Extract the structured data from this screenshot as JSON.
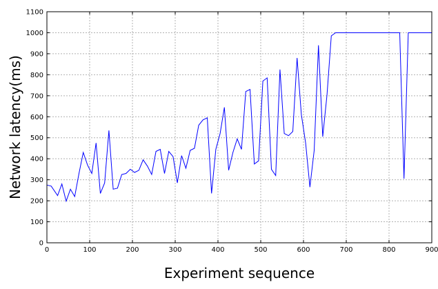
{
  "chart_data": {
    "type": "line",
    "title": "",
    "xlabel": "Experiment sequence",
    "ylabel": "Network latency(ms)",
    "xlim": [
      0,
      900
    ],
    "ylim": [
      0,
      1100
    ],
    "xticks": [
      0,
      100,
      200,
      300,
      400,
      500,
      600,
      700,
      800,
      900
    ],
    "yticks": [
      0,
      100,
      200,
      300,
      400,
      500,
      600,
      700,
      800,
      900,
      1000,
      1100
    ],
    "grid": true,
    "legend": "none",
    "colors": {
      "series": "#0000ff",
      "grid": "#b0b0b0",
      "axis": "#000000"
    },
    "series": [
      {
        "x": [
          0,
          10,
          25,
          35,
          45,
          55,
          65,
          75,
          85,
          95,
          105,
          115,
          125,
          135,
          145,
          155,
          165,
          175,
          185,
          195,
          205,
          215,
          225,
          235,
          245,
          255,
          265,
          275,
          285,
          295,
          305,
          315,
          325,
          335,
          345,
          355,
          365,
          375,
          385,
          395,
          405,
          415,
          425,
          435,
          445,
          455,
          465,
          475,
          485,
          495,
          505,
          515,
          525,
          535,
          545,
          555,
          565,
          575,
          585,
          595,
          605,
          615,
          625,
          635,
          645,
          655,
          665,
          675,
          685,
          700,
          720,
          740,
          760,
          780,
          800,
          825,
          835,
          845,
          855,
          865,
          880,
          900
        ],
        "y": [
          275,
          270,
          225,
          280,
          198,
          255,
          220,
          330,
          430,
          370,
          330,
          475,
          235,
          285,
          535,
          255,
          260,
          325,
          330,
          350,
          335,
          345,
          395,
          365,
          325,
          435,
          445,
          330,
          435,
          410,
          285,
          415,
          355,
          440,
          450,
          560,
          585,
          595,
          235,
          445,
          520,
          645,
          345,
          430,
          495,
          445,
          720,
          730,
          375,
          390,
          770,
          785,
          350,
          320,
          825,
          520,
          510,
          530,
          880,
          610,
          475,
          265,
          440,
          940,
          505,
          705,
          985,
          1000,
          1000,
          1000,
          1000,
          1000,
          1000,
          1000,
          1000,
          1000,
          305,
          1000,
          1000,
          1000,
          1000,
          1000
        ]
      }
    ]
  }
}
